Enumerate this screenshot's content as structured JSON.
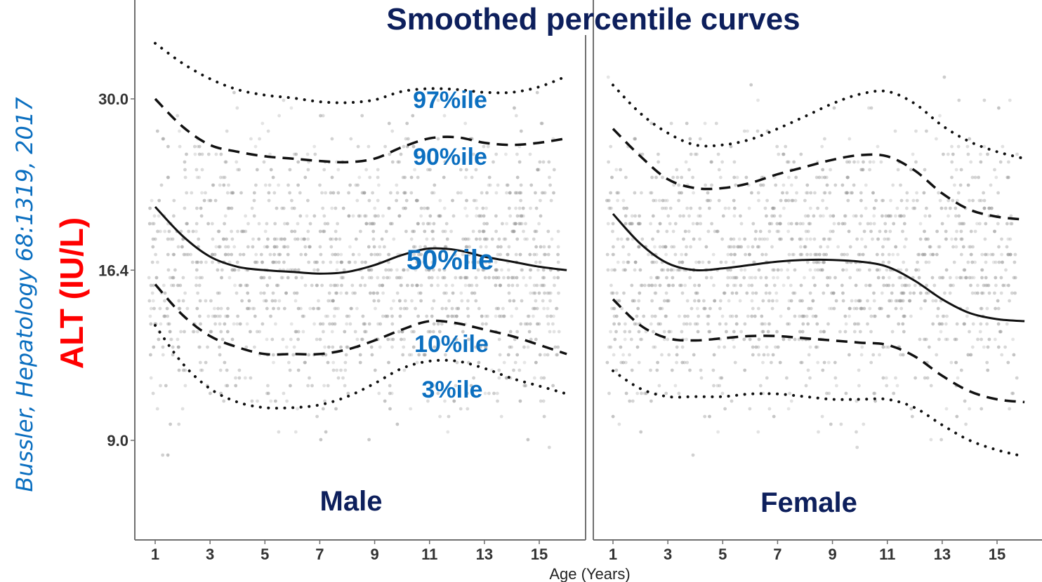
{
  "chart_data": {
    "type": "line",
    "title": "Smoothed percentile curves",
    "xlabel": "Age (Years)",
    "ylabel": "ALT (IU/L)",
    "citation": "Bussler, Hepatology 68:1319, 2017",
    "y_scale": "log",
    "ylim": [
      6.5,
      42
    ],
    "xlim": [
      0.5,
      16.5
    ],
    "x_ticks": [
      1,
      3,
      5,
      7,
      9,
      11,
      13,
      15
    ],
    "x_tick_labels": [
      "1",
      "3",
      "5",
      "7",
      "9",
      "11",
      "13",
      "15"
    ],
    "y_ticks": [
      9.0,
      16.4,
      30.0
    ],
    "y_tick_labels": [
      "9.0",
      "16.4",
      "30.0"
    ],
    "grid": false,
    "background_points": "grey jittered raw observations (not individually enumerated)",
    "line_styles": {
      "3": "dotted",
      "10": "dashed",
      "50": "solid",
      "90": "dashed",
      "97": "dotted"
    },
    "panels": [
      {
        "name": "Male",
        "label": "Male",
        "percentile_labels": [
          {
            "percentile": 97,
            "text": "97%ile"
          },
          {
            "percentile": 90,
            "text": "90%ile"
          },
          {
            "percentile": 50,
            "text": "50%ile"
          },
          {
            "percentile": 10,
            "text": "10%ile"
          },
          {
            "percentile": 3,
            "text": "3%ile"
          }
        ],
        "x": [
          1,
          2,
          3,
          4,
          5,
          6,
          7,
          8,
          9,
          10,
          11,
          12,
          13,
          14,
          15,
          16
        ],
        "series": [
          {
            "name": "97th",
            "percentile": 97,
            "values": [
              36.5,
              34.0,
              32.2,
              31.0,
              30.4,
              30.1,
              29.7,
              29.6,
              29.9,
              30.8,
              31.1,
              31.0,
              30.7,
              30.7,
              31.3,
              32.5
            ]
          },
          {
            "name": "90th",
            "percentile": 90,
            "values": [
              30.0,
              27.2,
              25.5,
              24.9,
              24.5,
              24.3,
              24.1,
              24.0,
              24.3,
              25.3,
              26.1,
              26.2,
              25.7,
              25.5,
              25.7,
              26.1
            ]
          },
          {
            "name": "50th",
            "percentile": 50,
            "values": [
              20.5,
              18.5,
              17.2,
              16.6,
              16.4,
              16.3,
              16.2,
              16.3,
              16.7,
              17.3,
              17.7,
              17.6,
              17.2,
              16.9,
              16.6,
              16.4
            ]
          },
          {
            "name": "10th",
            "percentile": 10,
            "values": [
              15.6,
              14.0,
              13.0,
              12.5,
              12.2,
              12.2,
              12.2,
              12.4,
              12.8,
              13.3,
              13.7,
              13.6,
              13.3,
              13.0,
              12.6,
              12.2
            ]
          },
          {
            "name": "3rd",
            "percentile": 3,
            "values": [
              13.5,
              11.8,
              10.8,
              10.3,
              10.1,
              10.1,
              10.2,
              10.5,
              11.0,
              11.6,
              11.9,
              11.9,
              11.6,
              11.2,
              10.9,
              10.6
            ]
          }
        ]
      },
      {
        "name": "Female",
        "label": "Female",
        "x": [
          1,
          2,
          3,
          4,
          5,
          6,
          7,
          8,
          9,
          10,
          11,
          12,
          13,
          14,
          15,
          16
        ],
        "series": [
          {
            "name": "97th",
            "percentile": 97,
            "values": [
              31.5,
              28.5,
              26.6,
              25.5,
              25.5,
              26.0,
              27.0,
              28.2,
              29.5,
              30.5,
              30.8,
              29.5,
              27.3,
              25.8,
              24.9,
              24.3
            ]
          },
          {
            "name": "90th",
            "percentile": 90,
            "values": [
              27.0,
              24.5,
              22.6,
              21.9,
              21.9,
              22.3,
              23.0,
              23.6,
              24.2,
              24.6,
              24.5,
              23.3,
              21.5,
              20.3,
              19.8,
              19.6
            ]
          },
          {
            "name": "50th",
            "percentile": 50,
            "values": [
              20.0,
              18.0,
              16.8,
              16.4,
              16.5,
              16.7,
              16.9,
              17.0,
              17.0,
              16.9,
              16.6,
              15.8,
              14.8,
              14.1,
              13.8,
              13.7
            ]
          },
          {
            "name": "10th",
            "percentile": 10,
            "values": [
              14.8,
              13.5,
              12.9,
              12.8,
              12.9,
              13.0,
              13.0,
              12.9,
              12.8,
              12.7,
              12.6,
              12.1,
              11.3,
              10.7,
              10.4,
              10.3
            ]
          },
          {
            "name": "3rd",
            "percentile": 3,
            "values": [
              11.5,
              10.8,
              10.5,
              10.5,
              10.5,
              10.6,
              10.6,
              10.5,
              10.4,
              10.4,
              10.4,
              10.1,
              9.5,
              9.0,
              8.7,
              8.5
            ]
          }
        ]
      }
    ]
  }
}
